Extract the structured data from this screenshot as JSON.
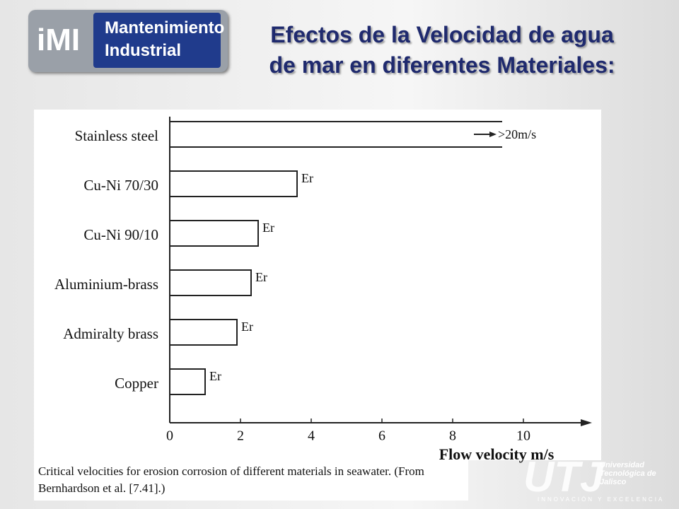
{
  "header": {
    "logo": {
      "mark": "iMI",
      "line1": "Mantenimiento",
      "line2": "Industrial"
    },
    "title": "Efectos de la Velocidad de agua de mar en diferentes Materiales:"
  },
  "chart_data": {
    "type": "hbar",
    "categories": [
      "Stainless steel",
      "Cu-Ni 70/30",
      "Cu-Ni 90/10",
      "Aluminium-brass",
      "Admiralty brass",
      "Copper"
    ],
    "values": [
      9.4,
      3.6,
      2.5,
      2.3,
      1.9,
      1.0
    ],
    "bar_labels": [
      ">20m/s",
      "Er",
      "Er",
      "Er",
      "Er",
      "Er"
    ],
    "color": "#ffffff",
    "xlim": [
      0,
      11.5
    ],
    "xticks": [
      0,
      2,
      4,
      6,
      8,
      10
    ],
    "xlabel": "Flow velocity m/s"
  },
  "caption": "Critical velocities for erosion corrosion of different materials in seawater. (From Bernhardson et al. [7.41].)",
  "footer": {
    "university": "Universidad Tecnológica de Jalisco",
    "motto": "INNOVACIÓN Y EXCELENCIA",
    "mark": "UTJ"
  }
}
